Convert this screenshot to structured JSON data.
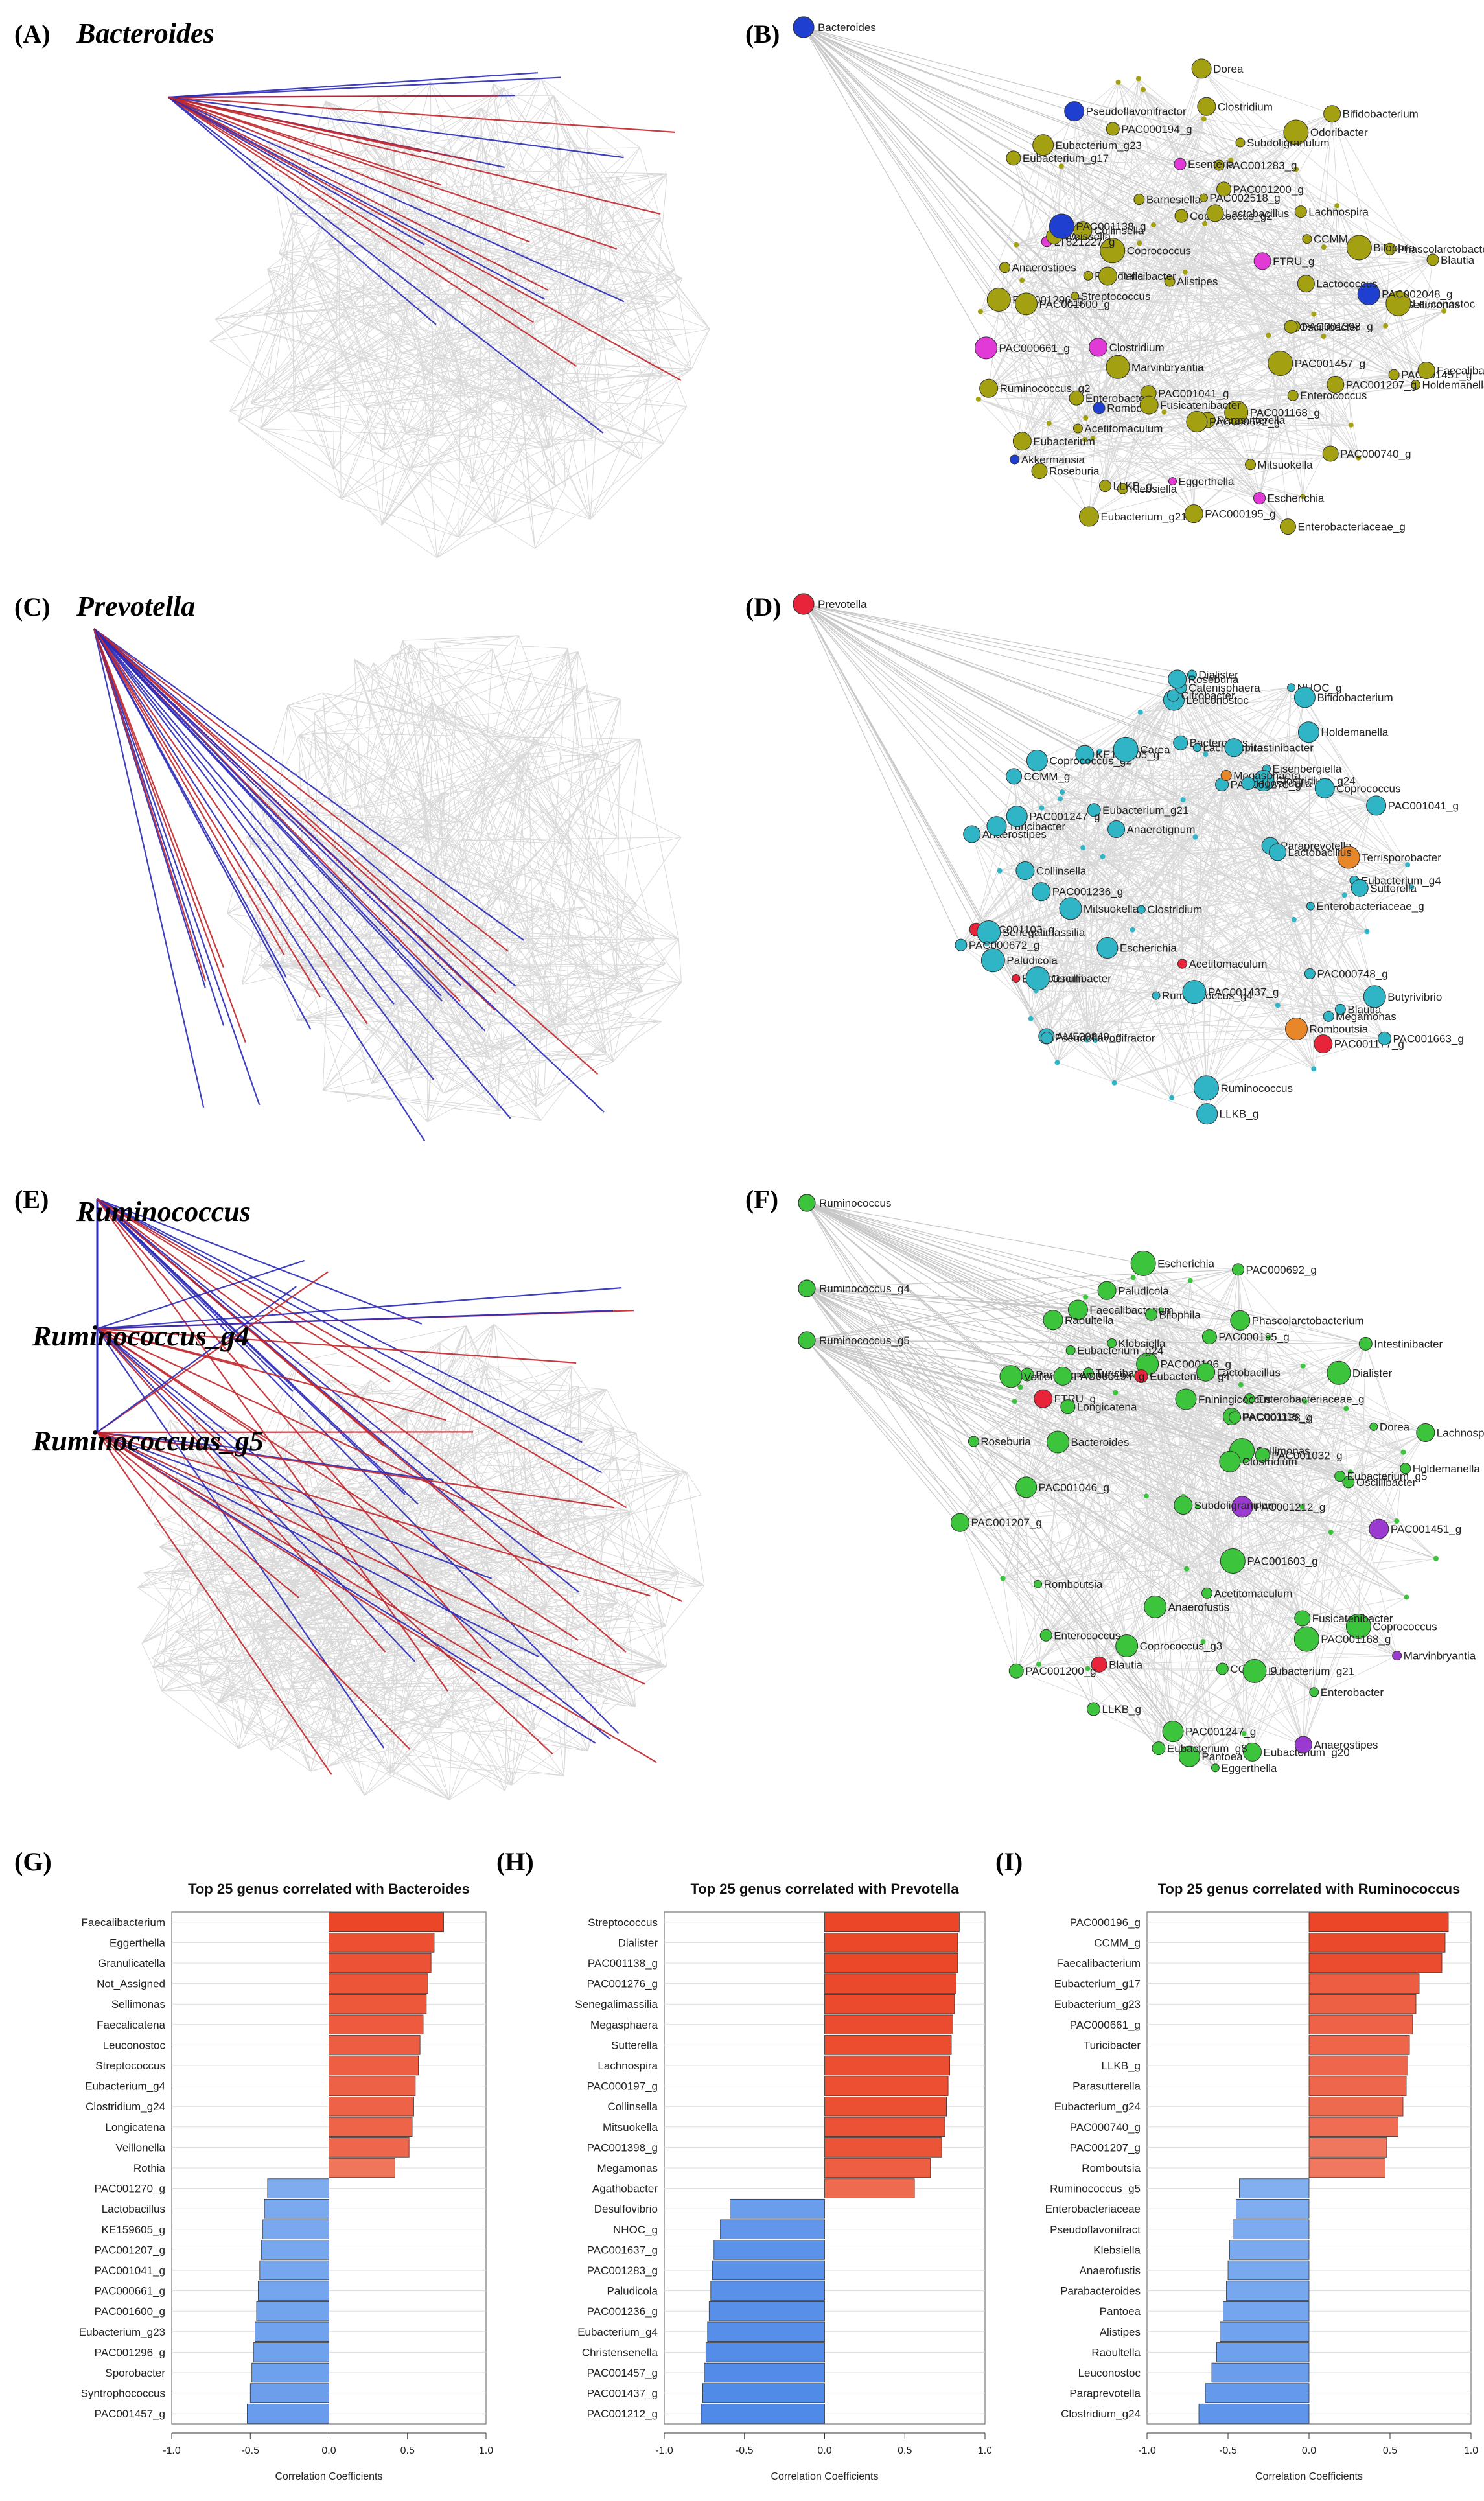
{
  "panels": {
    "A": {
      "letter": "(A)",
      "genus": "Bacteroides"
    },
    "B": {
      "letter": "(B)"
    },
    "C": {
      "letter": "(C)",
      "genus": "Prevotella"
    },
    "D": {
      "letter": "(D)"
    },
    "E": {
      "letter": "(E)",
      "genus1": "Ruminococcus",
      "genus2": "Ruminococcus_g4",
      "genus3": "Ruminococcuas_g5"
    },
    "F": {
      "letter": "(F)"
    },
    "G": {
      "letter": "(G)"
    },
    "H": {
      "letter": "(H)"
    },
    "I": {
      "letter": "(I)"
    }
  },
  "colors": {
    "edge_gray": "#cfcfcf",
    "edge_red": "#c0272d",
    "edge_blue": "#2b2bb8",
    "olive": "#a3a012",
    "cyan": "#2fb5c5",
    "green": "#3cc43c",
    "hub_blue": "#1f3fd0",
    "hub_red": "#e8243a",
    "magenta": "#e13ad6",
    "purple": "#9b3ad0",
    "orange": "#e8862a"
  },
  "networks": {
    "B": {
      "hub": "Bacteroides",
      "labels": [
        "Prevotella",
        "Blautia",
        "Odoribacter",
        "Phascolarctobacterium",
        "Escherichia",
        "PAC000661_g",
        "Roseburia",
        "PAC001283_g",
        "Coprococcus",
        "PAC001296_g",
        "Clostridium",
        "Streptococcus",
        "Enterococcus",
        "PAC001457_g",
        "Akkermansia",
        "Eubacterium_g17",
        "CCMM_g",
        "LT821227_g",
        "Barnesiella",
        "Sellimonas",
        "PAC001451_g",
        "PAC002518_g",
        "Acetitomaculum",
        "Enterobacteriaceae_g",
        "Klebsiella",
        "Leuconostoc",
        "Pseudoflavonifractor",
        "Holdemanella",
        "PAC001398_g",
        "PAC002048_g",
        "PAC001041_g",
        "Eggerthella",
        "Collinsella",
        "PAC001207_g",
        "FTRU_g",
        "Eubacterium",
        "Dorea",
        "Ruminococcus_g2",
        "Marvinbryantia",
        "PAC001168_g",
        "Subdoligranulum",
        "Parasutterella",
        "PAC000194_g",
        "Alistipes",
        "Coprococcus_g2",
        "Oscillibacter",
        "Eubacterium_g21",
        "PAC001600_g",
        "Lactococcus",
        "Enterobacter",
        "Faecalibacterium",
        "Bilophila",
        "Eubacterium_g23",
        "Anaerostipes",
        "Turicibacter",
        "Rombout",
        "Fusicatenibacter",
        "Lachnospira",
        "Weissella",
        "LLKB_g",
        "PAC000195_g",
        "Lactobacillus",
        "Bifidobacterium",
        "PAC000740_g",
        "PAC001138_g",
        "PAC001200_g",
        "Mitsuokella",
        "PAC000692_g",
        "Esenteria",
        "Clostridium"
      ]
    },
    "D": {
      "hub": "Prevotella",
      "labels": [
        "Escherichia",
        "Ruminococcus_g4",
        "KE159605_g",
        "Leuconostoc",
        "Eubacterium",
        "Paraprevotella",
        "Romboutsia",
        "CCMM_g",
        "Blautia",
        "Enterobacteriaceae_g",
        "PAC001103_g",
        "Anaerostipes",
        "Eisenbergiella",
        "Bacteroides",
        "AM500849_g",
        "Clostridium_g24",
        "Eubacterium_g21",
        "Catenisphaera",
        "Turicibacter",
        "Oscillibacter",
        "Clostridium",
        "PAC001177_g",
        "Butyrivibrio",
        "Acetitomaculum",
        "PAC001437_g",
        "Lachnospira",
        "Eubacterium_g4",
        "Sutterella",
        "Megamonas",
        "Terrisporobacter",
        "Holdemanella",
        "Pseudoflavonifractor",
        "PAC001247_g",
        "Coprococcus",
        "PAC000748_g",
        "NHOC_g",
        "PAC001270_g",
        "Megasphaera",
        "PAC001663_g",
        "PAC001236_g",
        "Collinsella",
        "Senegalimassilia",
        "Anaerotignum",
        "LLKB_g",
        "Coprococcus_g2",
        "Paludicola",
        "Bifidobacterium",
        "Citrobacter",
        "Lactobacillus",
        "PAC000672_g",
        "Howardella",
        "Dialister",
        "PAC001041_g",
        "Carea",
        "Roseburia",
        "Ruminococcus",
        "Intestinibacter",
        "Mitsuokella"
      ]
    },
    "F": {
      "hubs": [
        "Ruminococcus",
        "Ruminococcus_g4",
        "Ruminococcus_g5"
      ],
      "labels": [
        "Coprococcus_g3",
        "LLKB_g",
        "Klebsiella",
        "Turicibacter",
        "Enterobacteriaceae_g",
        "Enterococcus",
        "Dorea",
        "Pantoea",
        "Phascolarctobacterium",
        "PAC000692_g",
        "Intestinibacter",
        "Escherichia",
        "Faecalibacterium",
        "PAC000196_g",
        "Parabacteroides",
        "Romboutsia",
        "PAC001046_g",
        "Eubacterium_g4",
        "CCMM_g",
        "Anaerofustis",
        "FTRU_g",
        "Eubacterium_g24",
        "PAC001451_g",
        "Eubacterium_g20",
        "Raoultella",
        "PAC001207_g",
        "Coprococcus",
        "Fniningicoccus",
        "Sellimonas",
        "Oscillibacter",
        "Holdemanella",
        "Blautia",
        "Eubacterium_g5",
        "Eggerthella",
        "PAC001200_g",
        "Eubacterium_g21",
        "Veillonella",
        "Acetitomaculum",
        "Enterobacter",
        "Longicatena",
        "PAC001212_g",
        "Eubacterium_g8",
        "Dialister",
        "Fusicatenibacter",
        "PAC001032_g",
        "PAC000194_g",
        "PAC001603_g",
        "PAC001115_g",
        "PAC000195_g",
        "PAC001247_g",
        "Bilophila",
        "Lachnospira",
        "Subdoligranulum",
        "Paludicola",
        "Roseburia",
        "Anaerostipes",
        "Bacteroides",
        "PAC001168_g",
        "Marvinbryantia",
        "PAC001138_g",
        "Clostridium",
        "Lactobacillus"
      ]
    }
  },
  "axis": {
    "title": "Correlation Coefficients",
    "ticks": [
      "-1.0",
      "-0.5",
      "0.0",
      "0.5",
      "1.0"
    ]
  },
  "chart_data": [
    {
      "type": "bar",
      "orientation": "horizontal",
      "title": "Top 25 genus correlated with Bacteroides",
      "xlabel": "Correlation Coefficients",
      "xlim": [
        -1.0,
        1.0
      ],
      "categories": [
        "Faecalibacterium",
        "Eggerthella",
        "Granulicatella",
        "Not_Assigned",
        "Sellimonas",
        "Faecalicatena",
        "Leuconostoc",
        "Streptococcus",
        "Eubacterium_g4",
        "Clostridium_g24",
        "Longicatena",
        "Veillonella",
        "Rothia",
        "PAC001270_g",
        "Lactobacillus",
        "KE159605_g",
        "PAC001207_g",
        "PAC001041_g",
        "PAC000661_g",
        "PAC001600_g",
        "Eubacterium_g23",
        "PAC001296_g",
        "Sporobacter",
        "Syntrophococcus",
        "PAC001457_g"
      ],
      "values": [
        0.73,
        0.67,
        0.65,
        0.63,
        0.62,
        0.6,
        0.58,
        0.57,
        0.55,
        0.54,
        0.53,
        0.51,
        0.42,
        -0.39,
        -0.41,
        -0.42,
        -0.43,
        -0.44,
        -0.45,
        -0.46,
        -0.47,
        -0.48,
        -0.49,
        -0.5,
        -0.52
      ]
    },
    {
      "type": "bar",
      "orientation": "horizontal",
      "title": "Top 25 genus correlated with Prevotella",
      "xlabel": "Correlation Coefficients",
      "xlim": [
        -1.0,
        1.0
      ],
      "categories": [
        "Streptococcus",
        "Dialister",
        "PAC001138_g",
        "PAC001276_g",
        "Senegalimassilia",
        "Megasphaera",
        "Sutterella",
        "Lachnospira",
        "PAC000197_g",
        "Collinsella",
        "Mitsuokella",
        "PAC001398_g",
        "Megamonas",
        "Agathobacter",
        "Desulfovibrio",
        "NHOC_g",
        "PAC001637_g",
        "PAC001283_g",
        "Paludicola",
        "PAC001236_g",
        "Eubacterium_g4",
        "Christensenella",
        "PAC001457_g",
        "PAC001437_g",
        "PAC001212_g"
      ],
      "values": [
        0.84,
        0.83,
        0.83,
        0.82,
        0.81,
        0.8,
        0.79,
        0.78,
        0.77,
        0.76,
        0.75,
        0.73,
        0.66,
        0.56,
        -0.59,
        -0.65,
        -0.69,
        -0.7,
        -0.71,
        -0.72,
        -0.73,
        -0.74,
        -0.75,
        -0.76,
        -0.77
      ]
    },
    {
      "type": "bar",
      "orientation": "horizontal",
      "title": "Top 25 genus correlated with Ruminococcus",
      "xlabel": "Correlation Coefficients",
      "xlim": [
        -1.0,
        1.0
      ],
      "categories": [
        "PAC000196_g",
        "CCMM_g",
        "Faecalibacterium",
        "Eubacterium_g17",
        "Eubacterium_g23",
        "PAC000661_g",
        "Turicibacter",
        "LLKB_g",
        "Parasutterella",
        "Eubacterium_g24",
        "PAC000740_g",
        "PAC001207_g",
        "Romboutsia",
        "Ruminococcus_g5",
        "Enterobacteriaceae",
        "Pseudoflavonifract",
        "Klebsiella",
        "Anaerofustis",
        "Parabacteroides",
        "Pantoea",
        "Alistipes",
        "Raoultella",
        "Leuconostoc",
        "Paraprevotella",
        "Clostridium_g24"
      ],
      "values": [
        0.86,
        0.84,
        0.82,
        0.68,
        0.66,
        0.64,
        0.62,
        0.61,
        0.6,
        0.58,
        0.55,
        0.48,
        0.47,
        -0.43,
        -0.45,
        -0.47,
        -0.49,
        -0.5,
        -0.51,
        -0.53,
        -0.55,
        -0.57,
        -0.6,
        -0.64,
        -0.68
      ]
    }
  ]
}
